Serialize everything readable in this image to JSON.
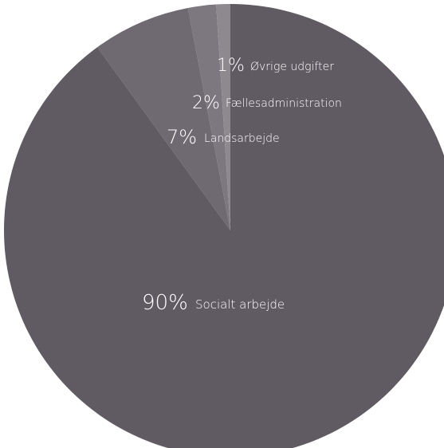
{
  "chart_data": {
    "type": "pie",
    "slices": [
      {
        "label": "Socialt arbejde",
        "percent_label": "90%",
        "value": 90,
        "color": "#605b62"
      },
      {
        "label": "Landsarbejde",
        "percent_label": "7%",
        "value": 7,
        "color": "#6f6a71"
      },
      {
        "label": "Fællesadministration",
        "percent_label": "2%",
        "value": 2,
        "color": "#7d787f"
      },
      {
        "label": "Øvrige udgifter",
        "percent_label": "1%",
        "value": 1,
        "color": "#8d898f"
      }
    ],
    "start_angle_deg": 0,
    "direction": "counterclockwise"
  }
}
